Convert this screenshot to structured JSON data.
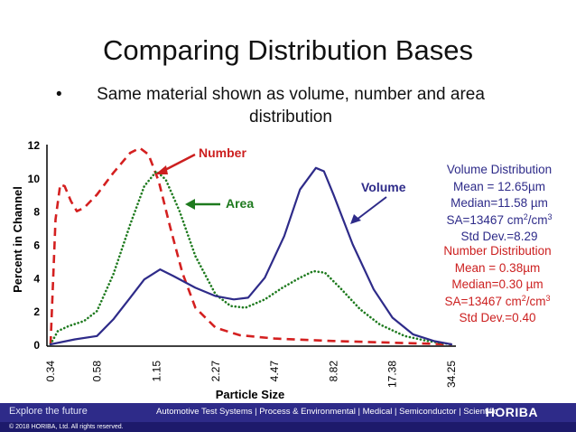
{
  "slide": {
    "title": "Comparing Distribution Bases",
    "bullet_symbol": "•",
    "bullet": "Same material shown as volume, number and area distribution"
  },
  "stats": {
    "volume": {
      "title": "Volume Distribution",
      "mean": "Mean = 12.65µm",
      "median": "Median=11.58 µm",
      "sa_prefix": "SA=13467 cm",
      "sa_mid": "/cm",
      "sa_exp_num": "2",
      "sa_exp_den": "3",
      "std": "Std Dev.=8.29",
      "color": "#2e2b89"
    },
    "number": {
      "title": "Number Distribution",
      "mean": "Mean = 0.38µm",
      "median": "Median=0.30 µm",
      "sa_prefix": "SA=13467 cm",
      "sa_mid": "/cm",
      "sa_exp_num": "2",
      "sa_exp_den": "3",
      "std": "Std Dev.=0.40",
      "color": "#cc1f1f"
    }
  },
  "chart_data": {
    "type": "line",
    "xlabel": "Particle Size",
    "ylabel": "Percent in Channel",
    "x_scale": "log",
    "categories": [
      "0.34",
      "0.58",
      "1.15",
      "2.27",
      "4.47",
      "8.82",
      "17.38",
      "34.25"
    ],
    "ylim": [
      0,
      12
    ],
    "yticks": [
      0,
      2,
      4,
      6,
      8,
      10,
      12
    ],
    "grid": false,
    "series": [
      {
        "name": "Number",
        "color": "#d42020",
        "style": "dashed",
        "points": [
          [
            0.34,
            0
          ],
          [
            0.36,
            7.5
          ],
          [
            0.38,
            9.6
          ],
          [
            0.4,
            9.5
          ],
          [
            0.43,
            8.6
          ],
          [
            0.46,
            8.0
          ],
          [
            0.5,
            8.2
          ],
          [
            0.58,
            9.0
          ],
          [
            0.7,
            10.3
          ],
          [
            0.85,
            11.5
          ],
          [
            0.95,
            11.8
          ],
          [
            1.05,
            11.4
          ],
          [
            1.18,
            9.8
          ],
          [
            1.35,
            7.0
          ],
          [
            1.55,
            4.3
          ],
          [
            1.8,
            2.2
          ],
          [
            2.27,
            1.0
          ],
          [
            3.0,
            0.55
          ],
          [
            4.47,
            0.35
          ],
          [
            8.82,
            0.2
          ],
          [
            17.38,
            0.1
          ],
          [
            34.25,
            0.0
          ]
        ]
      },
      {
        "name": "Area",
        "color": "#1e7a1e",
        "style": "dotted",
        "points": [
          [
            0.34,
            0
          ],
          [
            0.37,
            0.8
          ],
          [
            0.42,
            1.1
          ],
          [
            0.5,
            1.4
          ],
          [
            0.58,
            2.0
          ],
          [
            0.7,
            4.2
          ],
          [
            0.85,
            7.2
          ],
          [
            1.0,
            9.5
          ],
          [
            1.15,
            10.4
          ],
          [
            1.28,
            9.9
          ],
          [
            1.5,
            8.0
          ],
          [
            1.8,
            5.3
          ],
          [
            2.27,
            3.0
          ],
          [
            2.7,
            2.3
          ],
          [
            3.2,
            2.2
          ],
          [
            4.0,
            2.7
          ],
          [
            4.9,
            3.4
          ],
          [
            6.0,
            4.0
          ],
          [
            7.0,
            4.4
          ],
          [
            8.0,
            4.3
          ],
          [
            9.5,
            3.4
          ],
          [
            12.0,
            2.1
          ],
          [
            15.0,
            1.2
          ],
          [
            20.0,
            0.5
          ],
          [
            26.0,
            0.2
          ],
          [
            34.25,
            0.0
          ]
        ]
      },
      {
        "name": "Volume",
        "color": "#2e2b89",
        "style": "solid",
        "points": [
          [
            0.34,
            0
          ],
          [
            0.45,
            0.3
          ],
          [
            0.58,
            0.5
          ],
          [
            0.7,
            1.5
          ],
          [
            0.85,
            2.8
          ],
          [
            1.0,
            3.9
          ],
          [
            1.2,
            4.5
          ],
          [
            1.4,
            4.1
          ],
          [
            1.8,
            3.4
          ],
          [
            2.27,
            2.9
          ],
          [
            2.8,
            2.7
          ],
          [
            3.3,
            2.8
          ],
          [
            4.0,
            4.0
          ],
          [
            5.0,
            6.5
          ],
          [
            6.0,
            9.3
          ],
          [
            7.2,
            10.6
          ],
          [
            7.9,
            10.4
          ],
          [
            8.82,
            9.0
          ],
          [
            11.0,
            6.0
          ],
          [
            14.0,
            3.3
          ],
          [
            17.38,
            1.6
          ],
          [
            22.0,
            0.6
          ],
          [
            28.0,
            0.2
          ],
          [
            34.25,
            0.0
          ]
        ]
      }
    ],
    "annotations": [
      {
        "text": "Number",
        "color": "#cc1f1f"
      },
      {
        "text": "Area",
        "color": "#1e7a1e"
      },
      {
        "text": "Volume",
        "color": "#2e2b89"
      }
    ]
  },
  "footer": {
    "tagline": "Explore the future",
    "segments": "Automotive Test Systems  |  Process & Environmental  |  Medical  |  Semiconductor  |  Scientific",
    "logo": "HORIBA",
    "copyright": "© 2018 HORIBA, Ltd. All rights reserved."
  }
}
